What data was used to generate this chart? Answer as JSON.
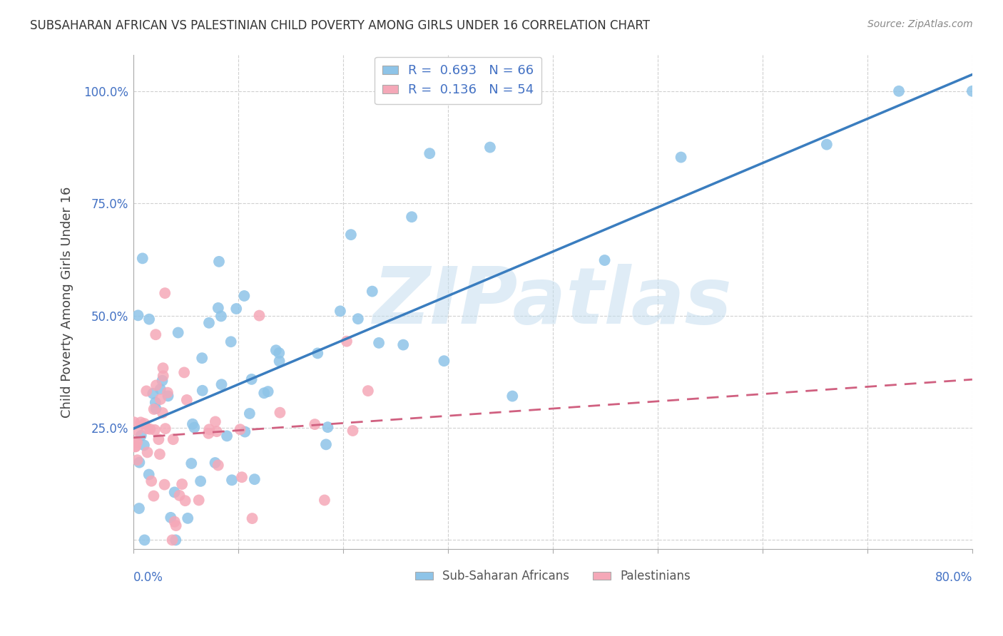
{
  "title": "SUBSAHARAN AFRICAN VS PALESTINIAN CHILD POVERTY AMONG GIRLS UNDER 16 CORRELATION CHART",
  "source": "Source: ZipAtlas.com",
  "ylabel": "Child Poverty Among Girls Under 16",
  "blue_color": "#8ec4e8",
  "blue_line_color": "#3a7dbf",
  "pink_color": "#f5a8b8",
  "pink_line_color": "#d06080",
  "watermark": "ZIPatlas",
  "blue_R": 0.693,
  "blue_N": 66,
  "pink_R": 0.136,
  "pink_N": 54,
  "xlim": [
    0.0,
    0.8
  ],
  "ylim": [
    -0.02,
    1.08
  ],
  "ytick_positions": [
    0.0,
    0.25,
    0.5,
    0.75,
    1.0
  ],
  "ytick_labels": [
    "",
    "25.0%",
    "50.0%",
    "75.0%",
    "100.0%"
  ],
  "xtick_label_left": "0.0%",
  "xtick_label_right": "80.0%",
  "legend1_label": "R =  0.693   N = 66",
  "legend2_label": "R =  0.136   N = 54",
  "bottom_legend1": "Sub-Saharan Africans",
  "bottom_legend2": "Palestinians",
  "tick_color": "#4472c4",
  "grid_color": "#d0d0d0",
  "title_color": "#333333",
  "source_color": "#888888"
}
